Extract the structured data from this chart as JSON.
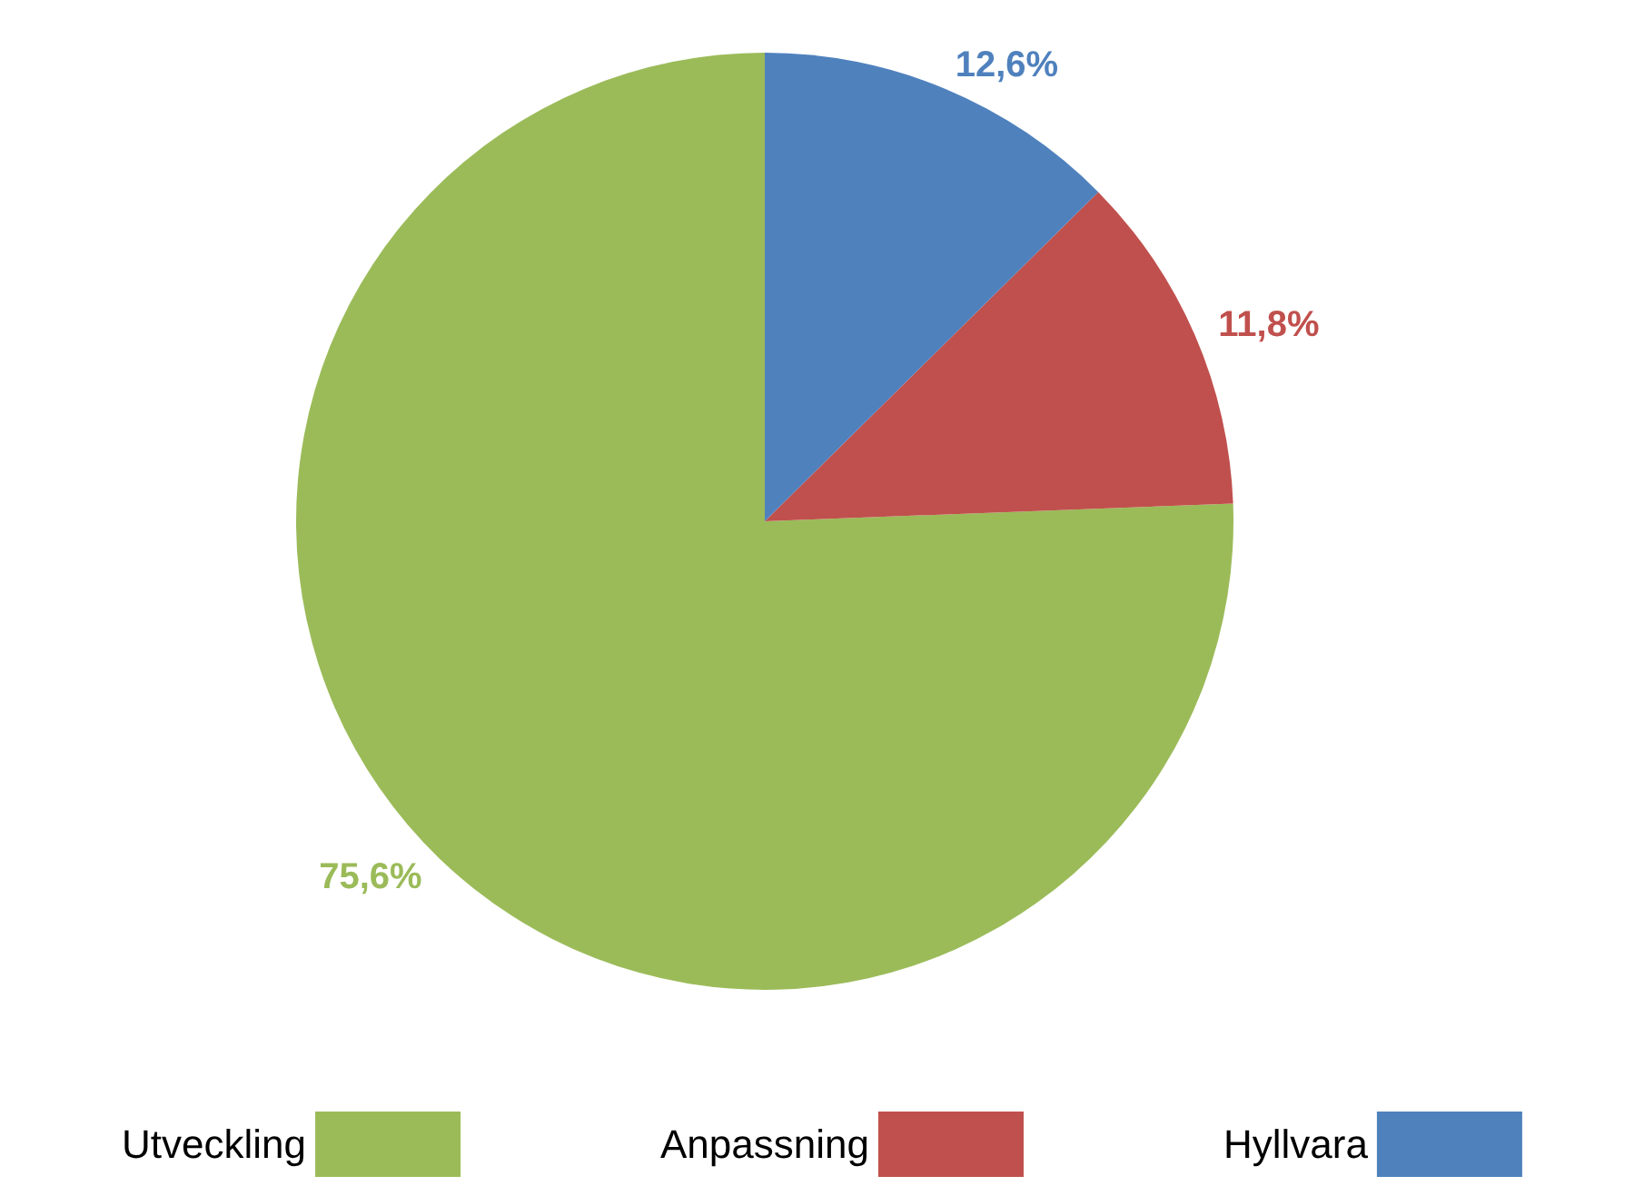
{
  "chart_data": {
    "type": "pie",
    "categories": [
      "Utveckling",
      "Anpassning",
      "Hyllvara"
    ],
    "values": [
      75.6,
      11.8,
      12.6
    ],
    "colors": [
      "#9bbb59",
      "#c0504d",
      "#4f81bd"
    ],
    "value_labels": [
      "75,6%",
      "11,8%",
      "12,6%"
    ],
    "legend": "bottom"
  }
}
